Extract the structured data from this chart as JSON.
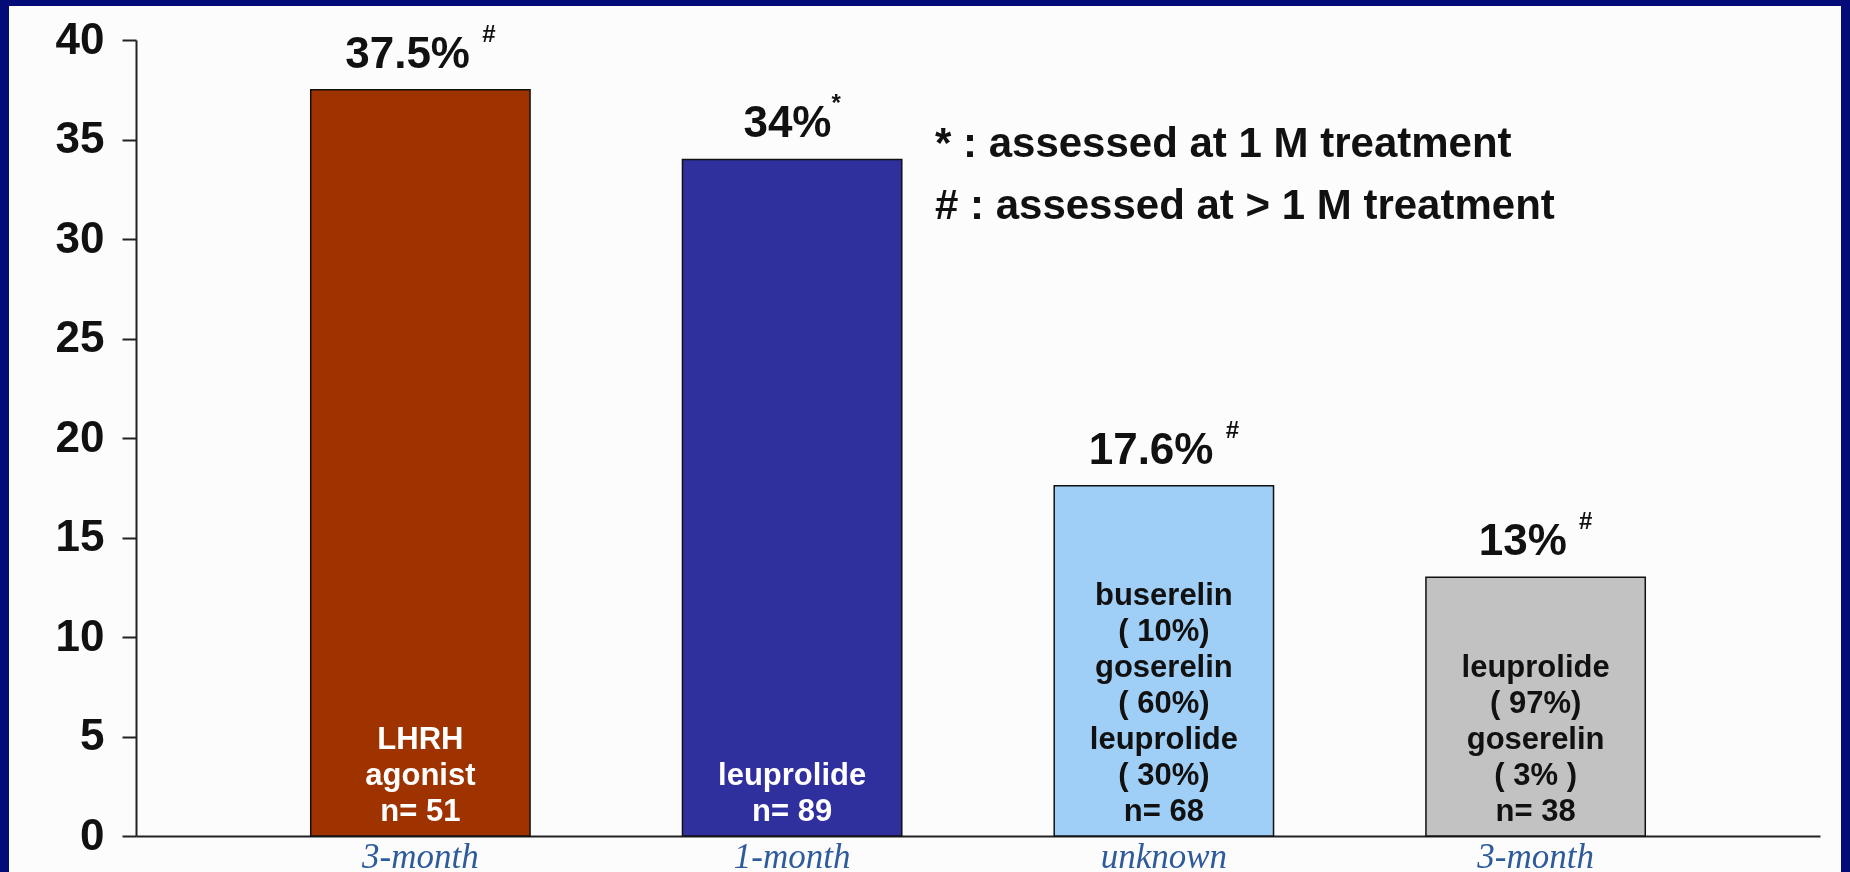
{
  "chart_data": {
    "type": "bar",
    "categories": [
      "3-month",
      "1-month",
      "unknown",
      "3-month"
    ],
    "values": [
      37.5,
      34,
      17.6,
      13
    ],
    "colors": [
      "#9f3300",
      "#302f9e",
      "#9fcff7",
      "#c2c2c2"
    ],
    "ylim": [
      0,
      40
    ],
    "yticks": [
      0,
      5,
      10,
      15,
      20,
      25,
      30,
      35,
      40
    ],
    "value_labels": [
      "37.5% $^{#}$",
      "34%$^{*}$",
      "17.6% $^{#}$",
      "13% $^{#}$"
    ],
    "annotations": [
      "LHRH\nagonist\nn= 51",
      "leuprolide\nn= 89",
      "buserelin\n( 10%)\ngoserelin\n( 60%)\nleuprolide\n( 30%)\nn= 68",
      "leuprolide\n( 97%)\ngoserelin\n( 3% )\nn= 38",
      "* : assessed at 1 M treatment",
      "# : assessed at > 1 M treatment"
    ]
  }
}
